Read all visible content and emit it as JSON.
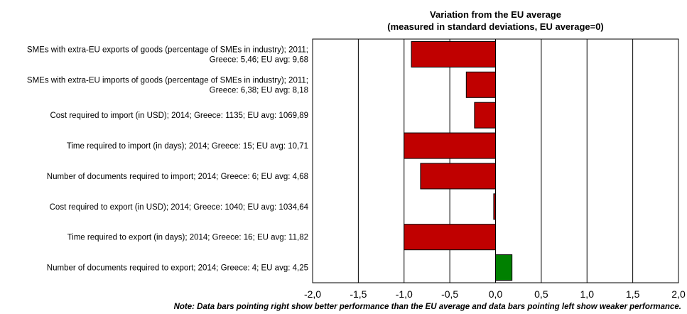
{
  "chart_data": {
    "type": "bar",
    "orientation": "horizontal",
    "title": "Variation from the EU average",
    "subtitle": "(measured in standard deviations, EU average=0)",
    "categories": [
      [
        "SMEs with extra-EU exports of goods (percentage of SMEs in industry); 2011;",
        "Greece: 5,46; EU avg: 9,68"
      ],
      [
        "SMEs with extra-EU imports of goods (percentage of SMEs in industry); 2011;",
        "Greece: 6,38; EU avg: 8,18"
      ],
      [
        "Cost required to import (in USD); 2014; Greece: 1135; EU avg: 1069,89"
      ],
      [
        "Time required to import (in days); 2014; Greece: 15; EU avg: 10,71"
      ],
      [
        "Number of documents required to import; 2014; Greece: 6; EU avg: 4,68"
      ],
      [
        "Cost required to export (in USD); 2014; Greece: 1040; EU avg: 1034,64"
      ],
      [
        "Time required to export (in days); 2014; Greece: 16; EU avg: 11,82"
      ],
      [
        "Number of documents required to export; 2014; Greece: 4; EU avg: 4,25"
      ]
    ],
    "values": [
      -0.92,
      -0.32,
      -0.23,
      -1.0,
      -0.82,
      -0.02,
      -1.0,
      0.18
    ],
    "colors": {
      "negative": "#c00000",
      "positive": "#008000"
    },
    "xlim": [
      -2.0,
      2.0
    ],
    "xticks": [
      -2.0,
      -1.5,
      -1.0,
      -0.5,
      0.0,
      0.5,
      1.0,
      1.5,
      2.0
    ],
    "xtick_labels": [
      "-2,0",
      "-1,5",
      "-1,0",
      "-0,5",
      "0,0",
      "0,5",
      "1,0",
      "1,5",
      "2,0"
    ],
    "grid": "vertical",
    "legend": "none"
  },
  "note": "Note: Data bars pointing right show better performance than the EU average and data bars pointing left show weaker performance."
}
